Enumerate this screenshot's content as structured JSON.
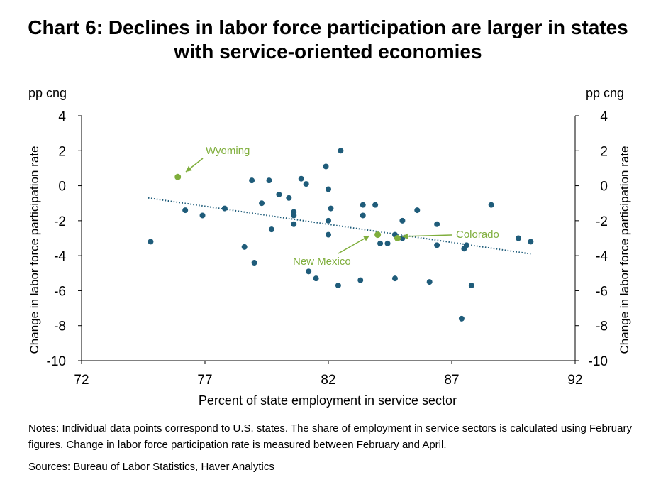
{
  "title_line1": "Chart 6: Declines in labor force participation are larger in states",
  "title_line2": "with service-oriented economies",
  "notes": "Notes: Individual data points correspond to U.S. states. The share of employment in service sectors is calculated using February figures. Change in labor force participation rate is measured between February and April.",
  "sources": "Sources: Bureau of Labor Statistics, Haver Analytics",
  "colors": {
    "points": "#1f5c7a",
    "highlight": "#7fae3c",
    "trend": "#1f5c7a",
    "axis": "#000000"
  },
  "chart_data": {
    "type": "scatter",
    "xlabel": "Percent of state employment in service sector",
    "ylabel": "Change in labor force participation rate",
    "ylabel_right": "Change in labor force participation rate",
    "yunit_left": "pp cng",
    "yunit_right": "pp cng",
    "xlim": [
      72,
      92
    ],
    "ylim": [
      -10,
      4
    ],
    "xticks": [
      "72",
      "77",
      "82",
      "87",
      "92"
    ],
    "yticks": [
      "4",
      "2",
      "0",
      "-2",
      "-4",
      "-6",
      "-8",
      "-10"
    ],
    "grid": false,
    "trendline": {
      "x": [
        74.7,
        90.2
      ],
      "y": [
        -0.7,
        -3.9
      ]
    },
    "points": [
      {
        "x": 74.8,
        "y": -3.2
      },
      {
        "x": 76.2,
        "y": -1.4
      },
      {
        "x": 76.9,
        "y": -1.7
      },
      {
        "x": 77.8,
        "y": -1.3
      },
      {
        "x": 78.6,
        "y": -3.5
      },
      {
        "x": 78.9,
        "y": 0.3
      },
      {
        "x": 79.0,
        "y": -4.4
      },
      {
        "x": 79.3,
        "y": -1.0
      },
      {
        "x": 79.6,
        "y": 0.3
      },
      {
        "x": 79.7,
        "y": -2.5
      },
      {
        "x": 80.0,
        "y": -0.5
      },
      {
        "x": 80.4,
        "y": -0.7
      },
      {
        "x": 80.6,
        "y": -1.5
      },
      {
        "x": 80.6,
        "y": -1.7
      },
      {
        "x": 80.6,
        "y": -2.2
      },
      {
        "x": 80.9,
        "y": 0.4
      },
      {
        "x": 81.1,
        "y": 0.1
      },
      {
        "x": 81.2,
        "y": -4.9
      },
      {
        "x": 81.5,
        "y": -5.3
      },
      {
        "x": 81.9,
        "y": 1.1
      },
      {
        "x": 82.0,
        "y": -0.2
      },
      {
        "x": 82.0,
        "y": -2.0
      },
      {
        "x": 82.0,
        "y": -2.8
      },
      {
        "x": 82.1,
        "y": -1.3
      },
      {
        "x": 82.4,
        "y": -5.7
      },
      {
        "x": 82.5,
        "y": 2.0
      },
      {
        "x": 83.3,
        "y": -5.4
      },
      {
        "x": 83.4,
        "y": -1.1
      },
      {
        "x": 83.4,
        "y": -1.7
      },
      {
        "x": 83.9,
        "y": -1.1
      },
      {
        "x": 84.1,
        "y": -3.3
      },
      {
        "x": 84.4,
        "y": -3.3
      },
      {
        "x": 84.7,
        "y": -2.8
      },
      {
        "x": 84.7,
        "y": -5.3
      },
      {
        "x": 85.0,
        "y": -2.0
      },
      {
        "x": 85.0,
        "y": -3.0
      },
      {
        "x": 85.6,
        "y": -1.4
      },
      {
        "x": 86.1,
        "y": -5.5
      },
      {
        "x": 86.4,
        "y": -2.2
      },
      {
        "x": 86.4,
        "y": -3.4
      },
      {
        "x": 87.4,
        "y": -7.6
      },
      {
        "x": 87.5,
        "y": -3.6
      },
      {
        "x": 87.6,
        "y": -3.4
      },
      {
        "x": 87.8,
        "y": -5.7
      },
      {
        "x": 88.6,
        "y": -1.1
      },
      {
        "x": 89.7,
        "y": -3.0
      },
      {
        "x": 90.2,
        "y": -3.2
      }
    ],
    "highlights": [
      {
        "label": "Wyoming",
        "x": 75.9,
        "y": 0.5
      },
      {
        "label": "New Mexico",
        "x": 84.0,
        "y": -2.8
      },
      {
        "label": "Colorado",
        "x": 84.8,
        "y": -3.0
      }
    ]
  }
}
